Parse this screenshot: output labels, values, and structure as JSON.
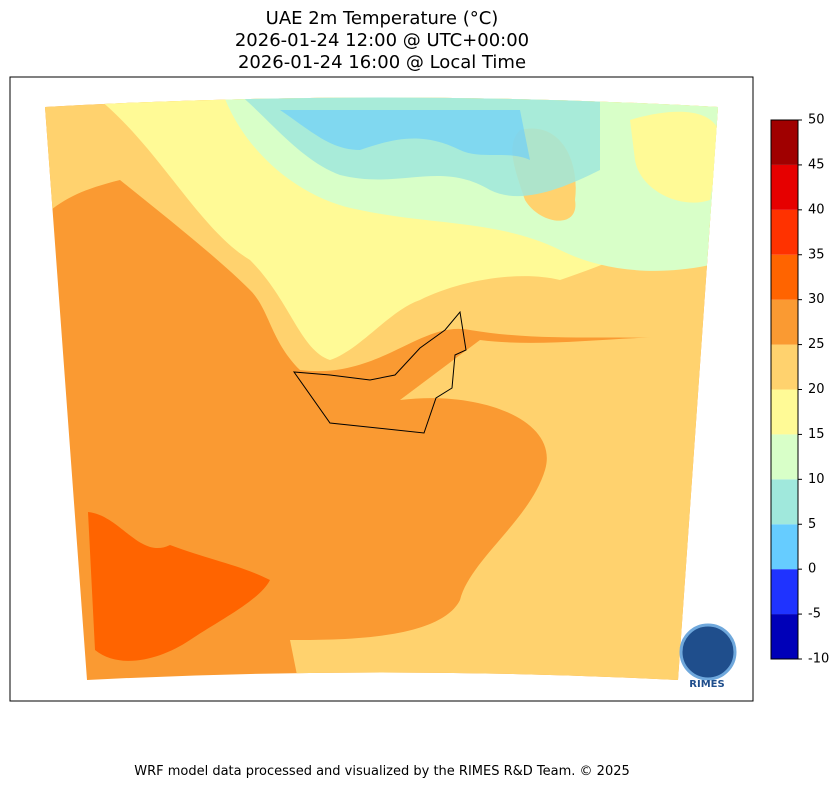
{
  "title_lines": [
    "UAE 2m Temperature (°C)",
    "2026-01-24 12:00 @ UTC+00:00",
    "2026-01-24 16:00 @ Local Time"
  ],
  "colorbar": {
    "ticks": [
      -10,
      -5,
      0,
      5,
      10,
      15,
      20,
      25,
      30,
      35,
      40,
      45,
      50
    ],
    "colors": [
      "#0000b8",
      "#1f33ff",
      "#66ccff",
      "#a0e8dc",
      "#d8ffc8",
      "#fffa96",
      "#ffd26e",
      "#fa9a32",
      "#ff6400",
      "#ff3200",
      "#e60000",
      "#a00000"
    ]
  },
  "logo_text": "RIMES",
  "footer": "WRF model data processed and visualized by the RIMES R&D Team. © 2025"
}
